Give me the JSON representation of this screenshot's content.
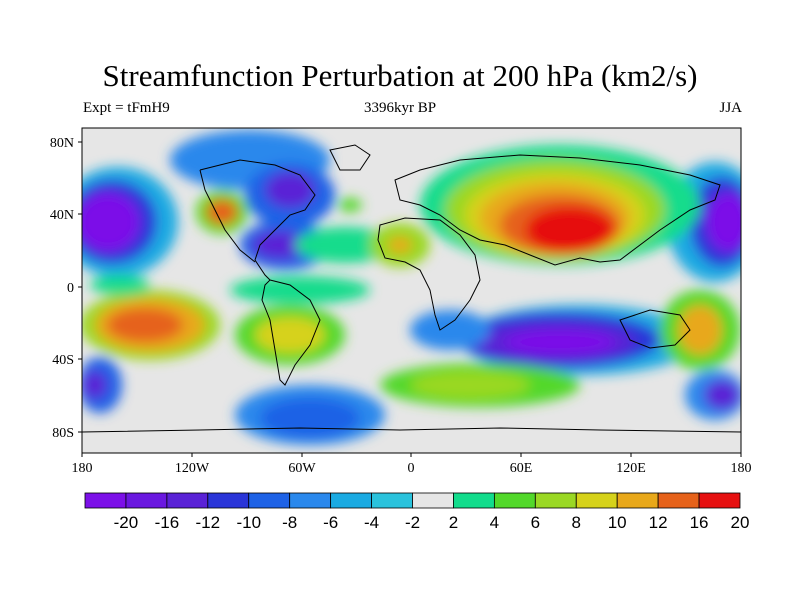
{
  "title": "Streamfunction Perturbation at 200 hPa (km2/s)",
  "subtitle_left": "Expt = tFmH9",
  "subtitle_center": "3396kyr BP",
  "subtitle_right": "JJA",
  "y_ticks": [
    "80N",
    "40N",
    "0",
    "40S",
    "80S"
  ],
  "x_ticks": [
    "180",
    "120W",
    "60W",
    "0",
    "60E",
    "120E",
    "180"
  ],
  "colorbar_colors": [
    "#7c10e8",
    "#6a18e0",
    "#5a22d6",
    "#2a35d8",
    "#1e62e6",
    "#2a88ec",
    "#1aaae2",
    "#2ac2dc",
    "#e6e6e6",
    "#12dc8c",
    "#52d82a",
    "#9ad824",
    "#d6d21a",
    "#e8a81a",
    "#e6621a",
    "#e61010"
  ],
  "colorbar_labels": [
    "-20",
    "-16",
    "-12",
    "-10",
    "-8",
    "-6",
    "-4",
    "-2",
    "2",
    "4",
    "6",
    "8",
    "10",
    "12",
    "16",
    "20"
  ],
  "map_background": "#e6e6e6"
}
